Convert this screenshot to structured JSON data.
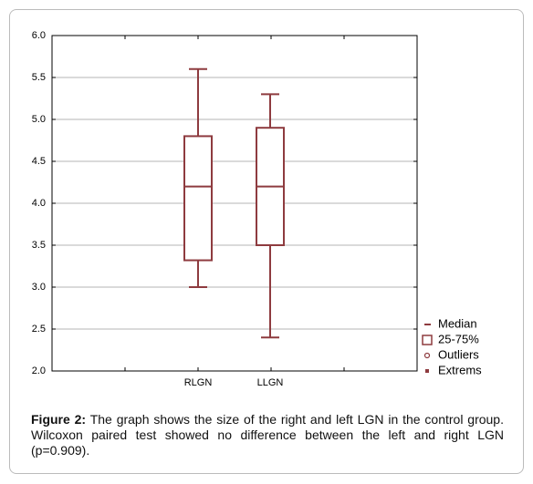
{
  "chart_data": {
    "type": "box",
    "categories": [
      "RLGN",
      "LLGN"
    ],
    "boxes": [
      {
        "min": 3.0,
        "q1": 3.32,
        "median": 4.2,
        "q3": 4.8,
        "max": 5.6
      },
      {
        "min": 2.4,
        "q1": 3.5,
        "median": 4.2,
        "q3": 4.9,
        "max": 5.3
      }
    ],
    "color": "#8e3b3f",
    "ylim": [
      2,
      6
    ],
    "yticks": [
      {
        "value": 2,
        "label": "2.0"
      },
      {
        "value": 2.5,
        "label": "2.5"
      },
      {
        "value": 3,
        "label": "3.0"
      },
      {
        "value": 3.5,
        "label": "3.5"
      },
      {
        "value": 4,
        "label": "4.0"
      },
      {
        "value": 4.5,
        "label": "4.5"
      },
      {
        "value": 5,
        "label": "5.0"
      },
      {
        "value": 5.5,
        "label": "5.5"
      },
      {
        "value": 6,
        "label": "6.0"
      }
    ],
    "grid": true,
    "legend": [
      "Median",
      "25-75%",
      "Outliers",
      "Extrems"
    ]
  },
  "caption": {
    "label": "Figure 2:",
    "text": "The graph shows the size of the right and left LGN in the control group. Wilcoxon paired test showed no difference between the left and right LGN (p=0.909)."
  }
}
